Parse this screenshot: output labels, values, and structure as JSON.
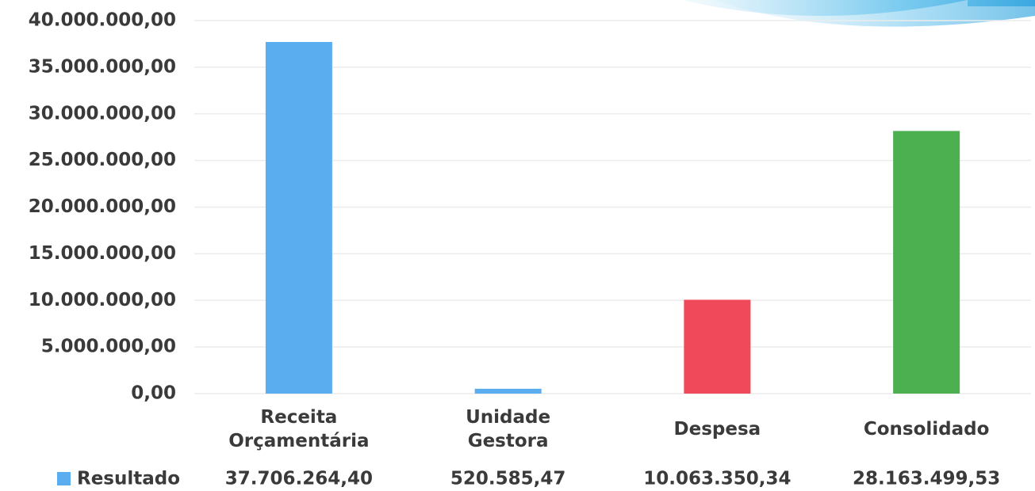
{
  "chart_data": {
    "type": "bar",
    "categories": [
      "Receita Orçamentária",
      "Unidade Gestora",
      "Despesa",
      "Consolidado"
    ],
    "series": [
      {
        "name": "Resultado",
        "color": "#5aaef0",
        "colors": [
          "#5aaef0",
          "#5aaef0",
          "#f04a5a",
          "#4caf50"
        ],
        "values": [
          37706264.4,
          520585.47,
          10063350.34,
          28163499.53
        ],
        "value_labels": [
          "37.706.264,40",
          "520.585,47",
          "10.063.350,34",
          "28.163.499,53"
        ]
      }
    ],
    "ylim": [
      0,
      40000000
    ],
    "yticks": [
      {
        "value": 0,
        "label": "0,00"
      },
      {
        "value": 5000000,
        "label": "5.000.000,00"
      },
      {
        "value": 10000000,
        "label": "10.000.000,00"
      },
      {
        "value": 15000000,
        "label": "15.000.000,00"
      },
      {
        "value": 20000000,
        "label": "20.000.000,00"
      },
      {
        "value": 25000000,
        "label": "25.000.000,00"
      },
      {
        "value": 30000000,
        "label": "30.000.000,00"
      },
      {
        "value": 35000000,
        "label": "35.000.000,00"
      },
      {
        "value": 40000000,
        "label": "40.000.000,00"
      }
    ],
    "grid": true
  }
}
